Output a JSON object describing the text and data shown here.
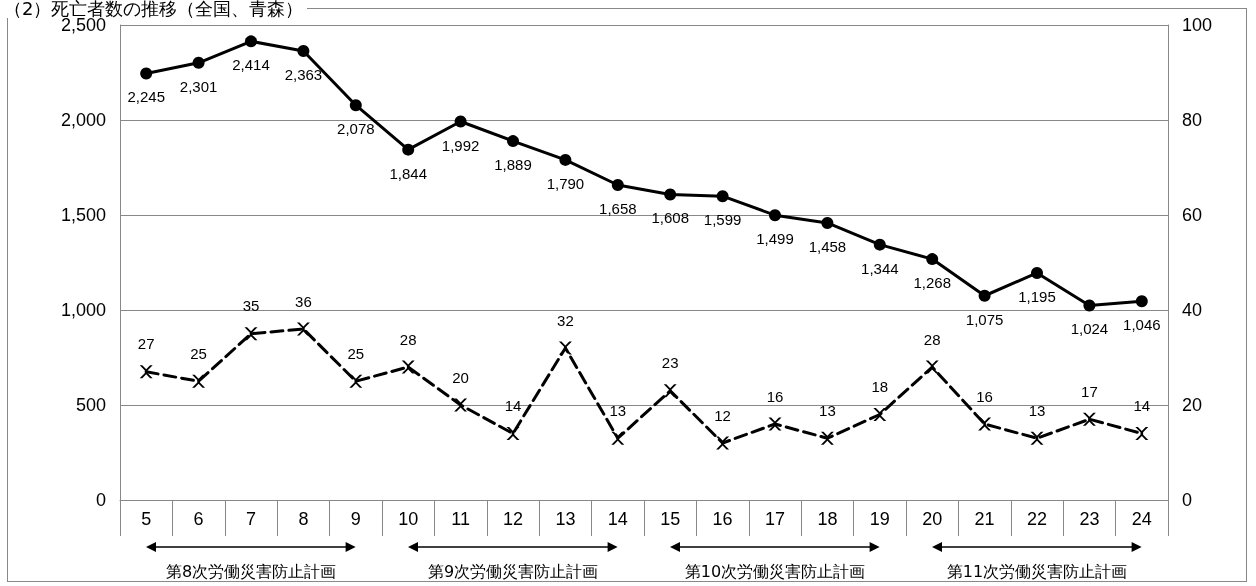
{
  "chart_data": {
    "type": "line",
    "title": "（2）死亡者数の推移（全国、青森）",
    "categories": [
      "5",
      "6",
      "7",
      "8",
      "9",
      "10",
      "11",
      "12",
      "13",
      "14",
      "15",
      "16",
      "17",
      "18",
      "19",
      "20",
      "21",
      "22",
      "23",
      "24"
    ],
    "series": [
      {
        "color": "#000000",
        "marker": "circle",
        "line_style": "solid",
        "values": [
          2245,
          2301,
          2414,
          2363,
          2078,
          1844,
          1992,
          1889,
          1790,
          1658,
          1608,
          1599,
          1499,
          1458,
          1344,
          1268,
          1075,
          1195,
          1024,
          1046
        ],
        "value_labels": [
          "2,245",
          "2,301",
          "2,414",
          "2,363",
          "2,078",
          "1,844",
          "1,992",
          "1,889",
          "1,790",
          "1,658",
          "1,608",
          "1,599",
          "1,499",
          "1,458",
          "1,344",
          "1,268",
          "1,075",
          "1,195",
          "1,024",
          "1,046"
        ]
      },
      {
        "color": "#000000",
        "marker": "cross",
        "line_style": "dashed",
        "axis": "y2",
        "values": [
          27,
          25,
          35,
          36,
          25,
          28,
          20,
          14,
          32,
          13,
          23,
          12,
          16,
          13,
          18,
          28,
          16,
          13,
          17,
          14
        ]
      }
    ],
    "ylim": [
      0,
      2500
    ],
    "yticks": [
      0,
      500,
      {
        "value": 1000,
        "label": "1,000"
      },
      {
        "value": 1500,
        "label": "1,500"
      },
      {
        "value": 2000,
        "label": "2,000"
      },
      {
        "value": 2500,
        "label": "2,500"
      }
    ],
    "y2lim": [
      0,
      100
    ],
    "y2ticks": [
      0,
      20,
      40,
      60,
      80,
      100
    ],
    "grid": "y",
    "data_labels": true,
    "annotations": [
      "第8次労働災害防止計画",
      "第9次労働災害防止計画",
      "第10次労働災害防止計画",
      "第11次労働災害防止計画"
    ]
  }
}
